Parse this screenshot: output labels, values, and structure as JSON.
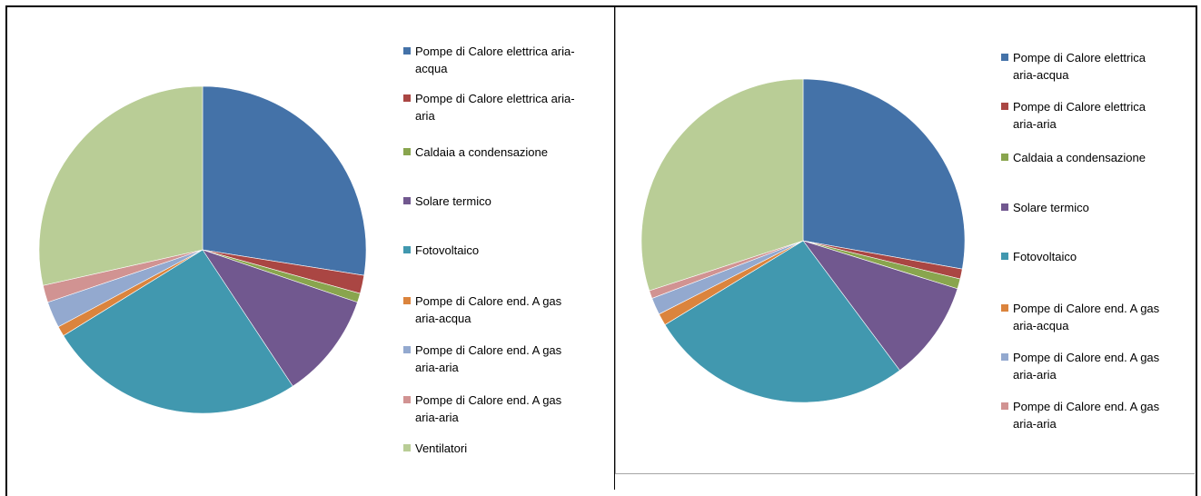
{
  "chart_data": [
    {
      "type": "pie",
      "legend": "right",
      "categories": [
        "Pompe di Calore elettrica aria-acqua",
        "Pompe di Calore elettrica aria-aria",
        "Caldaia a condensazione",
        "Solare termico",
        "Fotovoltaico",
        "Pompe di Calore end. A gas aria-acqua",
        "Pompe di Calore end. A gas aria-aria",
        "Pompe di Calore end. A gas aria-aria",
        "Ventilatori"
      ],
      "values": [
        27.5,
        1.8,
        0.9,
        10.5,
        25.5,
        1.0,
        2.6,
        1.7,
        28.5
      ],
      "colors": [
        "#4472a8",
        "#aa4643",
        "#89a54e",
        "#71588f",
        "#4198af",
        "#db843d",
        "#93a9cf",
        "#d19392",
        "#b9cd96"
      ]
    },
    {
      "type": "pie",
      "legend": "right",
      "categories": [
        "Pompe di Calore elettrica aria-acqua",
        "Pompe di Calore elettrica aria-aria",
        "Caldaia a condensazione",
        "Solare termico",
        "Fotovoltaico",
        "Pompe di Calore end. A gas aria-acqua",
        "Pompe di Calore end. A gas aria-aria",
        "Pompe di Calore end. A gas aria-aria"
      ],
      "values": [
        27.8,
        1.0,
        1.0,
        10.0,
        26.5,
        1.2,
        1.7,
        0.8
      ],
      "extra_values": [
        30.0
      ],
      "extra_colors": [
        "#b9cd96"
      ],
      "colors": [
        "#4472a8",
        "#aa4643",
        "#89a54e",
        "#71588f",
        "#4198af",
        "#db843d",
        "#93a9cf",
        "#d19392"
      ]
    }
  ],
  "legend_left": [
    {
      "line1": "Pompe di Calore elettrica aria-",
      "line2": "acqua"
    },
    {
      "line1": "Pompe di Calore elettrica aria-",
      "line2": "aria"
    },
    {
      "line1": "Caldaia a condensazione",
      "line2": ""
    },
    {
      "line1": "Solare termico",
      "line2": ""
    },
    {
      "line1": "Fotovoltaico",
      "line2": ""
    },
    {
      "line1": "Pompe di Calore end. A gas",
      "line2": "aria-acqua"
    },
    {
      "line1": "Pompe di Calore end. A gas",
      "line2": "aria-aria"
    },
    {
      "line1": "Pompe di Calore end. A gas",
      "line2": "aria-aria"
    },
    {
      "line1": "Ventilatori",
      "line2": ""
    }
  ],
  "legend_right": [
    {
      "line1": "Pompe di Calore elettrica",
      "line2": "aria-acqua"
    },
    {
      "line1": "Pompe di Calore elettrica",
      "line2": "aria-aria"
    },
    {
      "line1": "Caldaia a condensazione",
      "line2": ""
    },
    {
      "line1": "Solare termico",
      "line2": ""
    },
    {
      "line1": "Fotovoltaico",
      "line2": ""
    },
    {
      "line1": "Pompe di Calore end. A gas",
      "line2": "aria-acqua"
    },
    {
      "line1": "Pompe di Calore end. A gas",
      "line2": "aria-aria"
    },
    {
      "line1": "Pompe di Calore end. A gas",
      "line2": "aria-aria"
    }
  ]
}
